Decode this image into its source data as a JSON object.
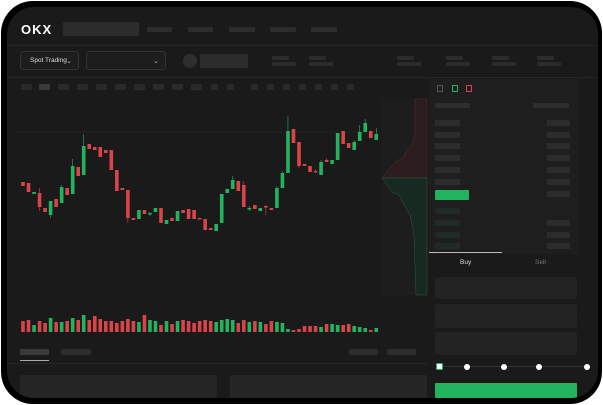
{
  "brand": {
    "logo": "OKX"
  },
  "header": {
    "market_selector": "Spot Trading"
  },
  "order_form": {
    "tabs": [
      {
        "label": "Buy",
        "active": true
      },
      {
        "label": "Sell",
        "active": false
      }
    ],
    "slider_level": 0,
    "slider_stops": 5
  },
  "colors": {
    "up": "#22b35e",
    "down": "#d9434a",
    "background": "#1a1a1a"
  },
  "icons": [
    "chevron-down-icon",
    "orderbook-both-icon",
    "orderbook-bids-icon",
    "orderbook-asks-icon"
  ],
  "chart": {
    "type": "candlestick",
    "candles": [
      [
        69,
        65,
        69,
        65
      ],
      [
        68,
        59,
        68,
        59
      ],
      [
        57,
        59,
        59,
        57
      ],
      [
        58,
        44,
        63,
        40
      ],
      [
        43,
        39,
        43,
        39
      ],
      [
        36,
        50,
        50,
        33
      ],
      [
        52,
        44,
        52,
        44
      ],
      [
        48,
        64,
        66,
        48
      ],
      [
        63,
        56,
        63,
        56
      ],
      [
        57,
        85,
        92,
        57
      ],
      [
        84,
        75,
        84,
        75
      ],
      [
        76,
        105,
        117,
        76
      ],
      [
        107,
        102,
        107,
        102
      ],
      [
        104,
        101,
        104,
        101
      ],
      [
        104,
        94,
        104,
        94
      ],
      [
        101,
        98,
        101,
        98
      ],
      [
        101,
        81,
        101,
        81
      ],
      [
        81,
        60,
        81,
        60
      ],
      [
        63,
        61,
        63,
        61
      ],
      [
        61,
        33,
        61,
        28
      ],
      [
        33,
        31,
        33,
        31
      ],
      [
        32,
        41,
        41,
        32
      ],
      [
        41,
        37,
        41,
        37
      ],
      [
        37,
        38,
        39,
        35
      ],
      [
        39,
        43,
        43,
        39
      ],
      [
        43,
        28,
        43,
        28
      ],
      [
        27,
        31,
        31,
        27
      ],
      [
        33,
        30,
        33,
        30
      ],
      [
        30,
        40,
        40,
        30
      ],
      [
        41,
        38,
        41,
        38
      ],
      [
        42,
        32,
        42,
        32
      ],
      [
        41,
        32,
        41,
        32
      ],
      [
        33,
        32,
        33,
        32
      ],
      [
        32,
        21,
        32,
        21
      ],
      [
        23,
        21,
        23,
        21
      ],
      [
        20,
        27,
        27,
        20
      ],
      [
        28,
        57,
        57,
        28
      ],
      [
        58,
        62,
        62,
        58
      ],
      [
        62,
        71,
        75,
        62
      ],
      [
        70,
        60,
        70,
        60
      ],
      [
        66,
        44,
        70,
        44
      ],
      [
        42,
        43,
        45,
        40
      ],
      [
        46,
        42,
        46,
        42
      ],
      [
        40,
        43,
        43,
        40
      ],
      [
        45,
        44,
        46,
        36
      ],
      [
        43,
        41,
        43,
        41
      ],
      [
        43,
        63,
        65,
        43
      ],
      [
        63,
        78,
        80,
        63
      ],
      [
        78,
        120,
        135,
        78
      ],
      [
        122,
        108,
        122,
        108
      ],
      [
        109,
        85,
        109,
        83
      ],
      [
        87,
        85,
        87,
        85
      ],
      [
        85,
        79,
        85,
        79
      ],
      [
        80,
        79,
        82,
        79
      ],
      [
        76,
        89,
        91,
        76
      ],
      [
        91,
        89,
        93,
        89
      ],
      [
        87,
        91,
        91,
        87
      ],
      [
        91,
        118,
        118,
        91
      ],
      [
        120,
        107,
        120,
        107
      ],
      [
        108,
        103,
        108,
        103
      ],
      [
        101,
        109,
        111,
        101
      ],
      [
        110,
        119,
        126,
        110
      ],
      [
        119,
        128,
        132,
        119
      ],
      [
        120,
        113,
        120,
        113
      ],
      [
        111,
        117,
        123,
        111
      ]
    ],
    "volumes": [
      11,
      12,
      7,
      11,
      9,
      14,
      10,
      10,
      11,
      14,
      12,
      17,
      12,
      16,
      13,
      11,
      11,
      9,
      11,
      13,
      11,
      10,
      17,
      12,
      11,
      7,
      11,
      8,
      11,
      12,
      11,
      9,
      11,
      12,
      11,
      10,
      12,
      13,
      12,
      9,
      12,
      10,
      11,
      10,
      8,
      11,
      10,
      9,
      3,
      2,
      3,
      6,
      6,
      6,
      5,
      8,
      8,
      7,
      7,
      8,
      6,
      5,
      4,
      2,
      4
    ]
  }
}
